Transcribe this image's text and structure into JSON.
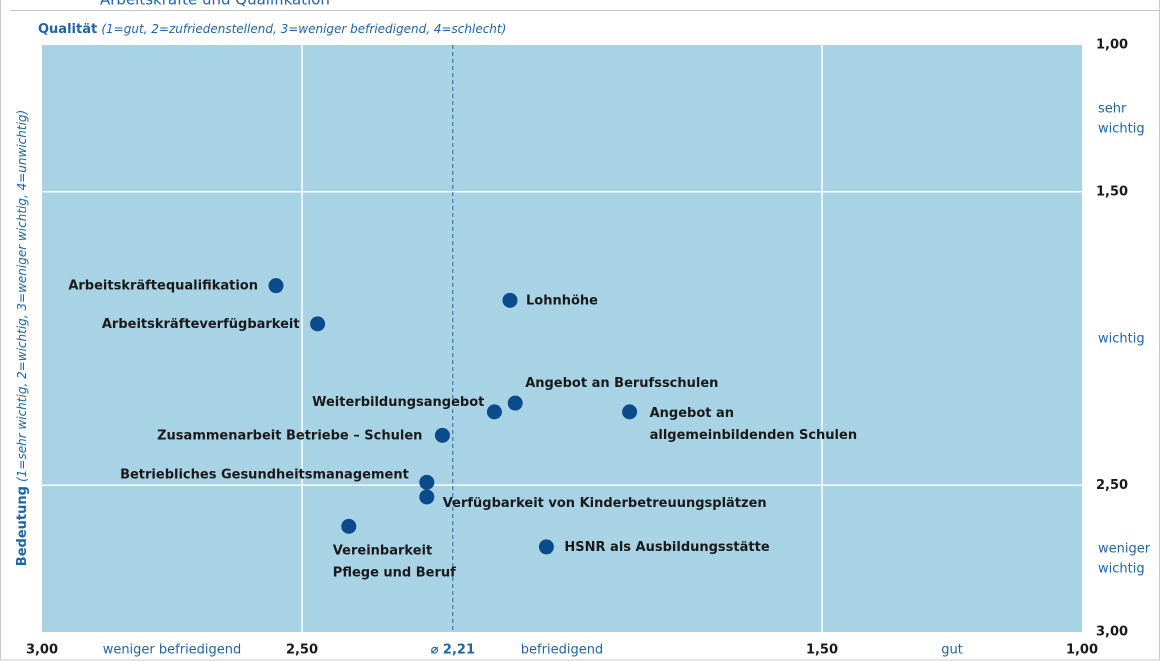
{
  "chart_data": {
    "type": "scatter",
    "title": "Arbeitskräfte und Qualifikation",
    "x_label": "Qualität",
    "x_label_note": "(1=gut, 2=zufriedenstellend, 3=weniger befriedigend, 4=schlecht)",
    "y_label": "Bedeutung",
    "y_label_note": "(1=sehr wichtig, 2=wichtig, 3=weniger wichtig, 4=unwichtig)",
    "xlim": [
      3.0,
      1.0
    ],
    "ylim": [
      3.0,
      1.0
    ],
    "xticks": [
      {
        "value": 3.0,
        "label": "3,00"
      },
      {
        "value": 2.5,
        "label": "2,50"
      },
      {
        "value": 1.5,
        "label": "1,50"
      },
      {
        "value": 1.0,
        "label": "1,00"
      }
    ],
    "yticks": [
      {
        "value": 1.0,
        "label": "1,00"
      },
      {
        "value": 1.5,
        "label": "1,50"
      },
      {
        "value": 2.5,
        "label": "2,50"
      },
      {
        "value": 3.0,
        "label": "3,00"
      }
    ],
    "x_scale_labels": [
      {
        "value": 2.75,
        "label": "weniger befriedigend"
      },
      {
        "value": 2.0,
        "label": "befriedigend"
      },
      {
        "value": 1.25,
        "label": "gut"
      }
    ],
    "y_scale_labels": [
      {
        "value": 1.25,
        "label": [
          "sehr",
          "wichtig"
        ]
      },
      {
        "value": 2.0,
        "label": [
          "wichtig"
        ]
      },
      {
        "value": 2.75,
        "label": [
          "weniger",
          "wichtig"
        ]
      }
    ],
    "mean": {
      "value": 2.21,
      "label": "⌀ 2,21"
    },
    "grid": true,
    "color": "#0b4a8b",
    "labels": [
      [
        "Arbeitskräftequalifikation"
      ],
      [
        "Arbeitskräfteverfügbarkeit"
      ],
      [
        "Lohnhöhe"
      ],
      [
        "Angebot an Berufsschulen"
      ],
      [
        "Weiterbildungsangebot"
      ],
      [
        "Angebot an",
        "allgemeinbildenden Schulen"
      ],
      [
        "Zusammenarbeit Betriebe – Schulen"
      ],
      [
        "Betriebliches Gesundheitsmanagement"
      ],
      [
        "Verfügbarkeit von Kinderbetreuungsplätzen"
      ],
      [
        "Vereinbarkeit",
        "Pflege und Beruf"
      ],
      [
        "HSNR als Ausbildungsstätte"
      ]
    ],
    "x": [
      2.55,
      2.47,
      2.1,
      2.09,
      2.13,
      1.87,
      2.23,
      2.26,
      2.26,
      2.41,
      2.03
    ],
    "y": [
      1.82,
      1.95,
      1.87,
      2.22,
      2.25,
      2.25,
      2.33,
      2.49,
      2.54,
      2.64,
      2.71
    ]
  }
}
